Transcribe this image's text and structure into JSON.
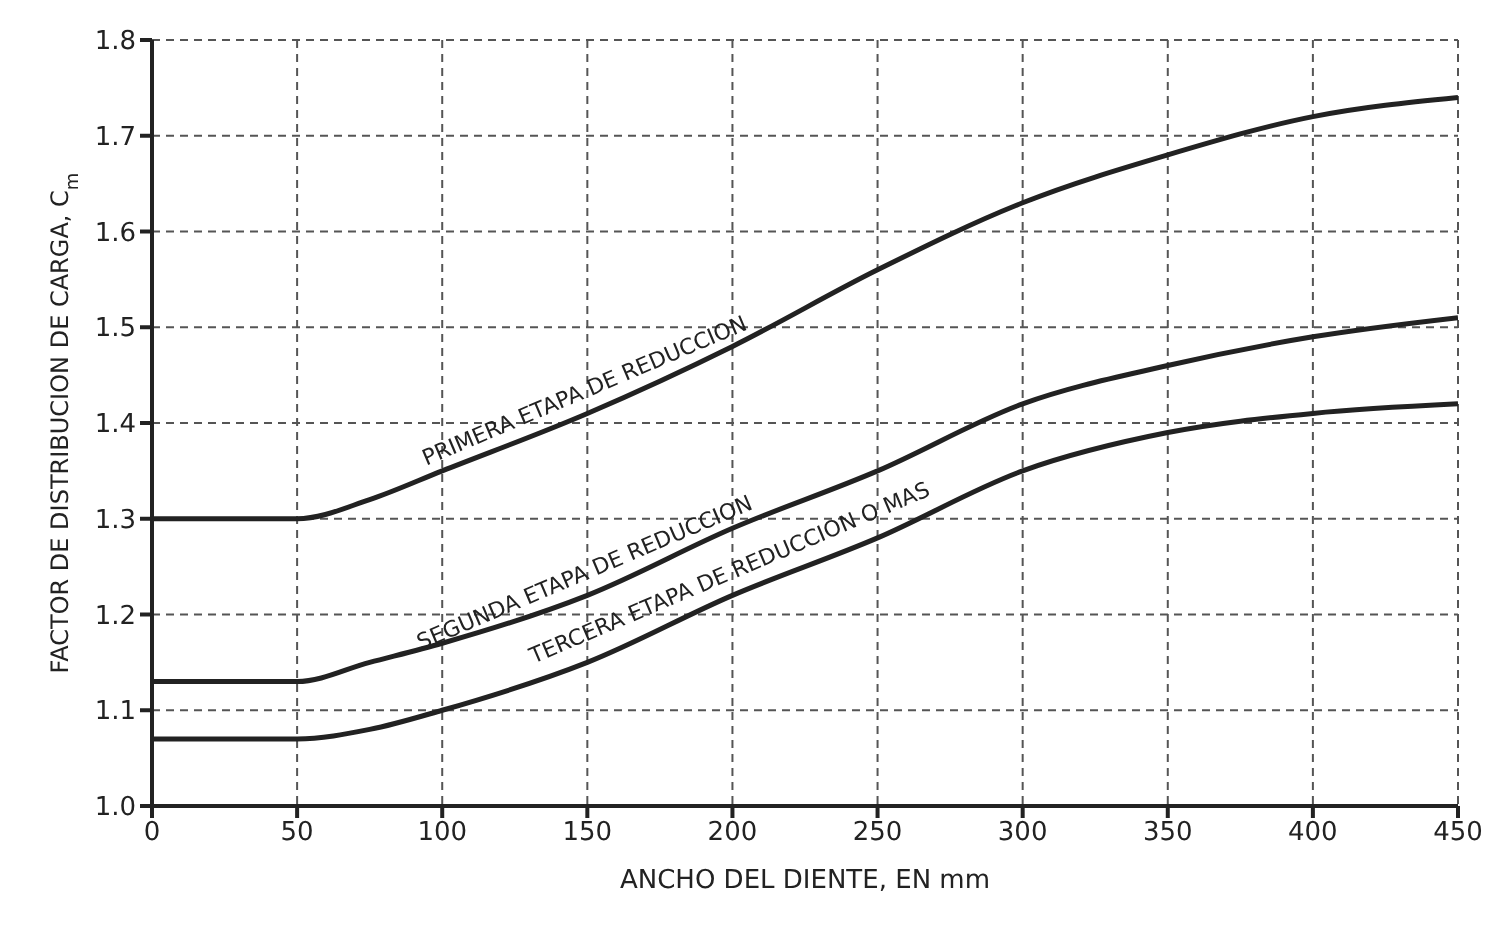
{
  "chart_data": {
    "type": "line",
    "xlabel": "ANCHO DEL DIENTE, EN mm",
    "ylabel": "FACTOR DE DISTRIBUCION DE CARGA, C$_{m}$",
    "x": [
      0,
      50,
      75,
      100,
      150,
      200,
      250,
      300,
      350,
      400,
      450
    ],
    "series": [
      {
        "name": "PRIMERA ETAPA DE REDUCCION",
        "color": "#222222",
        "values": [
          1.3,
          1.3,
          1.32,
          1.35,
          1.41,
          1.48,
          1.56,
          1.63,
          1.68,
          1.72,
          1.74
        ]
      },
      {
        "name": "SEGUNDA ETAPA DE REDUCCION",
        "color": "#222222",
        "values": [
          1.13,
          1.13,
          1.15,
          1.17,
          1.22,
          1.29,
          1.35,
          1.42,
          1.46,
          1.49,
          1.51
        ]
      },
      {
        "name": "TERCERA ETAPA DE REDUCCION O MAS",
        "color": "#222222",
        "values": [
          1.07,
          1.07,
          1.08,
          1.1,
          1.15,
          1.22,
          1.28,
          1.35,
          1.39,
          1.41,
          1.42
        ]
      }
    ],
    "xlim": [
      0,
      450
    ],
    "xticks": [
      0,
      50,
      100,
      150,
      200,
      250,
      300,
      350,
      400,
      450
    ],
    "ylim": [
      1.0,
      1.8
    ],
    "yticks": [
      {
        "value": 1.0,
        "label": "1.0"
      },
      1.1,
      1.2,
      1.3,
      1.4,
      1.5,
      1.6,
      1.7,
      1.8
    ],
    "grid": true,
    "marker": "none",
    "line_style": "solid"
  }
}
